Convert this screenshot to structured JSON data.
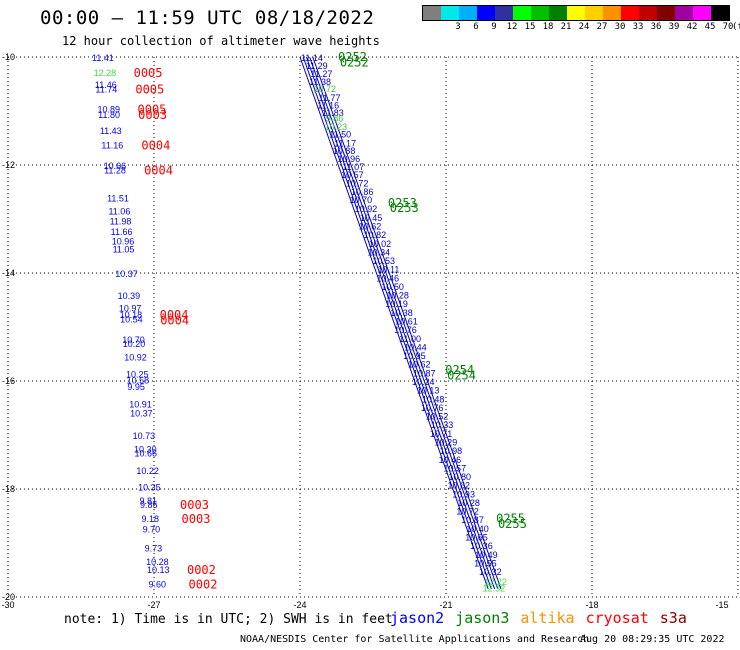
{
  "header": {
    "title": "00:00 – 11:59 UTC 08/18/2022",
    "subtitle": "12 hour collection of altimeter wave heights"
  },
  "colorbar": {
    "unit": "(ft)",
    "bins": [
      {
        "label": "",
        "color": "#7f7f7f"
      },
      {
        "label": "3",
        "color": "#00e8e8"
      },
      {
        "label": "6",
        "color": "#00b0ff"
      },
      {
        "label": "9",
        "color": "#0000ff"
      },
      {
        "label": "12",
        "color": "#3030a0"
      },
      {
        "label": "15",
        "color": "#00ff00"
      },
      {
        "label": "18",
        "color": "#00c000"
      },
      {
        "label": "21",
        "color": "#008000"
      },
      {
        "label": "24",
        "color": "#ffff00"
      },
      {
        "label": "27",
        "color": "#ffd000"
      },
      {
        "label": "30",
        "color": "#ff9000"
      },
      {
        "label": "33",
        "color": "#ff0000"
      },
      {
        "label": "36",
        "color": "#c00000"
      },
      {
        "label": "39",
        "color": "#800000"
      },
      {
        "label": "42",
        "color": "#a000a0"
      },
      {
        "label": "45",
        "color": "#ff00ff"
      },
      {
        "label": "70",
        "color": "#000000"
      }
    ]
  },
  "map": {
    "lat_ticks": [
      "-10",
      "-12",
      "-14",
      "-16",
      "-18",
      "-20"
    ],
    "lon_ticks": [
      "-30",
      "-27",
      "-24",
      "-21",
      "-18",
      "-15"
    ],
    "left_track": {
      "color": "#0000ff",
      "values": [
        {
          "lat": -10.0,
          "text": "11.41"
        },
        {
          "lat": -10.28,
          "text": "12.28",
          "color": "#40e040"
        },
        {
          "lat": -10.5,
          "text": "11.46"
        },
        {
          "lat": -10.58,
          "text": "11.74"
        },
        {
          "lat": -10.95,
          "text": "10.89"
        },
        {
          "lat": -11.06,
          "text": "11.80"
        },
        {
          "lat": -11.35,
          "text": "11.43"
        },
        {
          "lat": -11.62,
          "text": "11.16"
        },
        {
          "lat": -12.0,
          "text": "10.66"
        },
        {
          "lat": -12.08,
          "text": "11.28"
        },
        {
          "lat": -12.6,
          "text": "11.51"
        },
        {
          "lat": -12.84,
          "text": "11.06"
        },
        {
          "lat": -13.03,
          "text": "11.98"
        },
        {
          "lat": -13.22,
          "text": "11.66"
        },
        {
          "lat": -13.4,
          "text": "10.96"
        },
        {
          "lat": -13.55,
          "text": "11.05"
        },
        {
          "lat": -14.0,
          "text": "10.37"
        },
        {
          "lat": -14.41,
          "text": "10.39"
        },
        {
          "lat": -14.64,
          "text": "10.97"
        },
        {
          "lat": -14.76,
          "text": "10.18"
        },
        {
          "lat": -14.84,
          "text": "10.54"
        },
        {
          "lat": -15.22,
          "text": "10.70"
        },
        {
          "lat": -15.3,
          "text": "10.20"
        },
        {
          "lat": -15.55,
          "text": "10.92"
        },
        {
          "lat": -15.86,
          "text": "10.25"
        },
        {
          "lat": -15.97,
          "text": "10.58"
        },
        {
          "lat": -16.09,
          "text": "9.95"
        },
        {
          "lat": -16.42,
          "text": "10.91"
        },
        {
          "lat": -16.58,
          "text": "10.37"
        },
        {
          "lat": -17.0,
          "text": "10.73"
        },
        {
          "lat": -17.25,
          "text": "10.30"
        },
        {
          "lat": -17.32,
          "text": "10.66"
        },
        {
          "lat": -17.65,
          "text": "10.22"
        },
        {
          "lat": -17.95,
          "text": "10.35"
        },
        {
          "lat": -18.2,
          "text": "9.81"
        },
        {
          "lat": -18.28,
          "text": "9.85"
        },
        {
          "lat": -18.54,
          "text": "9.18"
        },
        {
          "lat": -18.73,
          "text": "9.70"
        },
        {
          "lat": -19.08,
          "text": "9.73"
        },
        {
          "lat": -19.33,
          "text": "10.28"
        },
        {
          "lat": -19.48,
          "text": "10.13"
        },
        {
          "lat": -19.75,
          "text": "9.60"
        }
      ],
      "times": [
        {
          "lat": -10.28,
          "text": "0005"
        },
        {
          "lat": -10.58,
          "text": "0005"
        },
        {
          "lat": -10.95,
          "text": "0005"
        },
        {
          "lat": -11.06,
          "text": "0003"
        },
        {
          "lat": -11.62,
          "text": "0004"
        },
        {
          "lat": -12.08,
          "text": "0004"
        },
        {
          "lat": -14.76,
          "text": "0004"
        },
        {
          "lat": -14.86,
          "text": "0004"
        },
        {
          "lat": -18.28,
          "text": "0003"
        },
        {
          "lat": -18.54,
          "text": "0003"
        },
        {
          "lat": -19.48,
          "text": "0002"
        },
        {
          "lat": -19.75,
          "text": "0002"
        }
      ]
    },
    "right_track": {
      "line_color": "#0000c8",
      "time_color": "#008000",
      "values": [
        {
          "lat": -10.0,
          "text": "11.14"
        },
        {
          "lat": -10.15,
          "text": "11.29"
        },
        {
          "lat": -10.3,
          "text": "11.27"
        },
        {
          "lat": -10.44,
          "text": "11.38"
        },
        {
          "lat": -10.57,
          "text": "10.72",
          "color": "#40c040"
        },
        {
          "lat": -10.74,
          "text": "11.77"
        },
        {
          "lat": -10.88,
          "text": "11.16"
        },
        {
          "lat": -11.02,
          "text": "11.83"
        },
        {
          "lat": -11.12,
          "text": "9.86",
          "color": "#40c040"
        },
        {
          "lat": -11.28,
          "text": "10.23",
          "color": "#40c040"
        },
        {
          "lat": -11.42,
          "text": "11.50"
        },
        {
          "lat": -11.58,
          "text": "11.17"
        },
        {
          "lat": -11.72,
          "text": "10.88"
        },
        {
          "lat": -11.87,
          "text": "10.96"
        },
        {
          "lat": -12.02,
          "text": "11.07"
        },
        {
          "lat": -12.17,
          "text": "10.57"
        },
        {
          "lat": -12.32,
          "text": "10.72"
        },
        {
          "lat": -12.48,
          "text": "10.86"
        },
        {
          "lat": -12.63,
          "text": "10.70"
        },
        {
          "lat": -12.8,
          "text": "10.92"
        },
        {
          "lat": -12.96,
          "text": "10.45"
        },
        {
          "lat": -13.12,
          "text": "10.62"
        },
        {
          "lat": -13.28,
          "text": "10.82"
        },
        {
          "lat": -13.44,
          "text": "10.02"
        },
        {
          "lat": -13.6,
          "text": "10.34"
        },
        {
          "lat": -13.76,
          "text": "10.53"
        },
        {
          "lat": -13.92,
          "text": "10.11"
        },
        {
          "lat": -14.08,
          "text": "10.46"
        },
        {
          "lat": -14.24,
          "text": "10.50"
        },
        {
          "lat": -14.4,
          "text": "10.28"
        },
        {
          "lat": -14.56,
          "text": "10.19"
        },
        {
          "lat": -14.72,
          "text": "10.38"
        },
        {
          "lat": -14.88,
          "text": "10.61"
        },
        {
          "lat": -15.04,
          "text": "10.76"
        },
        {
          "lat": -15.2,
          "text": "11.00"
        },
        {
          "lat": -15.36,
          "text": "10.44"
        },
        {
          "lat": -15.52,
          "text": "10.95"
        },
        {
          "lat": -15.68,
          "text": "10.62"
        },
        {
          "lat": -15.84,
          "text": "10.87"
        },
        {
          "lat": -16.0,
          "text": "10.24"
        },
        {
          "lat": -16.16,
          "text": "10.13"
        },
        {
          "lat": -16.32,
          "text": "10.48"
        },
        {
          "lat": -16.48,
          "text": "10.76"
        },
        {
          "lat": -16.64,
          "text": "10.52"
        },
        {
          "lat": -16.8,
          "text": "10.33"
        },
        {
          "lat": -16.96,
          "text": "10.71"
        },
        {
          "lat": -17.12,
          "text": "10.29"
        },
        {
          "lat": -17.28,
          "text": "10.98"
        },
        {
          "lat": -17.44,
          "text": "10.46"
        },
        {
          "lat": -17.6,
          "text": "10.57"
        },
        {
          "lat": -17.76,
          "text": "10.80"
        },
        {
          "lat": -17.92,
          "text": "10.62"
        },
        {
          "lat": -18.08,
          "text": "10.93"
        },
        {
          "lat": -18.24,
          "text": "10.28"
        },
        {
          "lat": -18.4,
          "text": "10.72"
        },
        {
          "lat": -18.56,
          "text": "10.87"
        },
        {
          "lat": -18.72,
          "text": "10.40"
        },
        {
          "lat": -18.88,
          "text": "10.65"
        },
        {
          "lat": -19.04,
          "text": "10.36"
        },
        {
          "lat": -19.2,
          "text": "10.49"
        },
        {
          "lat": -19.36,
          "text": "10.55"
        },
        {
          "lat": -19.52,
          "text": "10.32"
        },
        {
          "lat": -19.7,
          "text": "12.22",
          "color": "#40e040"
        },
        {
          "lat": -19.82,
          "text": "12.32",
          "color": "#40e040"
        }
      ],
      "times": [
        {
          "lat": -10.0,
          "text": "0252"
        },
        {
          "lat": -10.1,
          "text": "0252"
        },
        {
          "lat": -12.7,
          "text": "0253"
        },
        {
          "lat": -12.8,
          "text": "0253"
        },
        {
          "lat": -15.8,
          "text": "0254"
        },
        {
          "lat": -15.9,
          "text": "0254"
        },
        {
          "lat": -18.55,
          "text": "0255"
        },
        {
          "lat": -18.65,
          "text": "0255"
        }
      ]
    }
  },
  "footer": {
    "note": "note: 1) Time is in UTC; 2) SWH is in feet",
    "legend": [
      {
        "name": "jason2",
        "color": "#0000ff"
      },
      {
        "name": "jason3",
        "color": "#008000"
      },
      {
        "name": "altika",
        "color": "#ff9000"
      },
      {
        "name": "cryosat",
        "color": "#ff0000"
      },
      {
        "name": "s3a",
        "color": "#800000"
      }
    ],
    "credit": "NOAA/NESDIS Center for Satellite Applications and Research",
    "timestamp": "Aug 20 08:29:35 UTC 2022"
  }
}
